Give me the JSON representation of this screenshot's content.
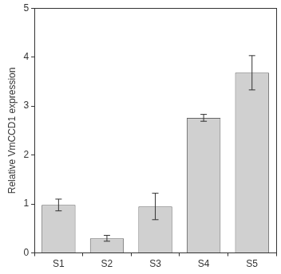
{
  "chart_data": {
    "type": "bar",
    "y_label": "Relative VmCCD1 expression",
    "categories": [
      "S1",
      "S2",
      "S3",
      "S4",
      "S5"
    ],
    "values": [
      0.98,
      0.3,
      0.95,
      2.76,
      3.68
    ],
    "errors": [
      0.12,
      0.06,
      0.27,
      0.07,
      0.35
    ],
    "color": "#d0d0d0",
    "ylim": [
      0,
      5
    ],
    "yticks": [
      0,
      1,
      2,
      3,
      4,
      5
    ],
    "grid": false
  }
}
